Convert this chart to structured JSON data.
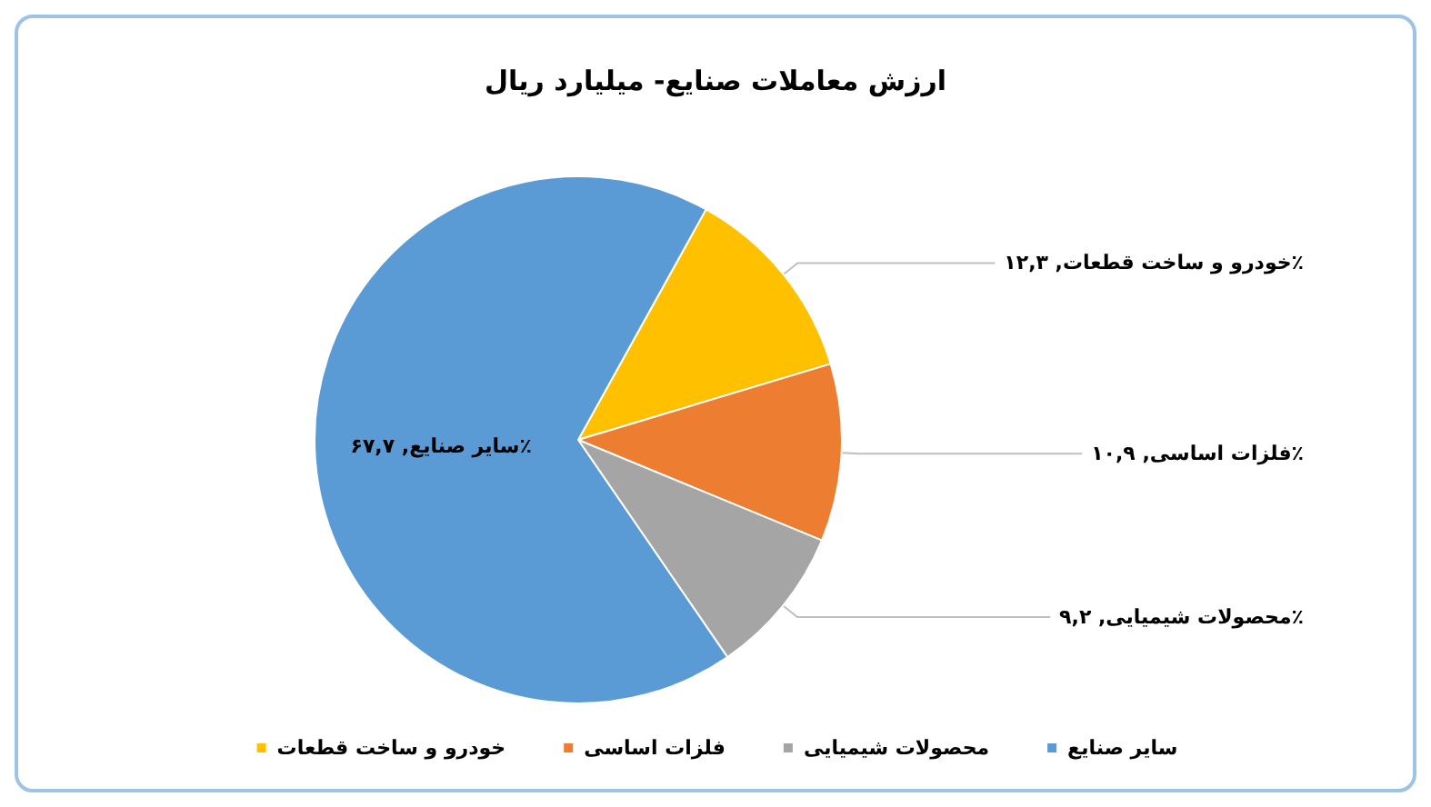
{
  "chart_data": {
    "type": "pie",
    "title": "ارزش معاملات صنایع- میلیارد ریال",
    "categories": [
      "خودرو و ساخت قطعات",
      "فلزات اساسی",
      "محصولات شیمیایی",
      "سایر صنایع"
    ],
    "values": [
      12.3,
      10.9,
      9.2,
      67.7
    ],
    "value_labels": [
      "خودرو و ساخت قطعات, ۱۲,۳٪",
      "فلزات اساسی, ۱۰,۹٪",
      "محصولات شیمیایی, ۹,۲٪",
      "سایر صنایع, ۶۷,۷٪"
    ],
    "colors": [
      "#ffc000",
      "#ed7d31",
      "#a5a5a5",
      "#5b9bd5"
    ],
    "legend": "bottom"
  }
}
